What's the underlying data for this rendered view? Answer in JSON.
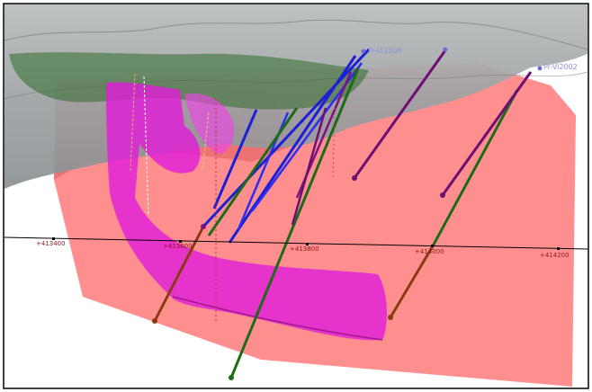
{
  "scene": {
    "colors": {
      "background": "#ffffff",
      "terrain": "#8f9497",
      "ore_body": "#d816d0",
      "fault_plane": "#ff6666",
      "drillhole_blue": "#1b1fd6",
      "drillhole_green": "#1d6b17",
      "drillhole_purple": "#6d0f72",
      "drillhole_brown": "#8a3a12",
      "axis_line": "#000000",
      "axis_label": "#8b1a1a",
      "collar_label": "#8a8fd8"
    },
    "axis_ticks": [
      "+413400",
      "+413600",
      "+413800",
      "+414000",
      "+414200"
    ],
    "collar_labels": [
      "Pr-Vi2008",
      "Pr-Vi2002"
    ]
  }
}
